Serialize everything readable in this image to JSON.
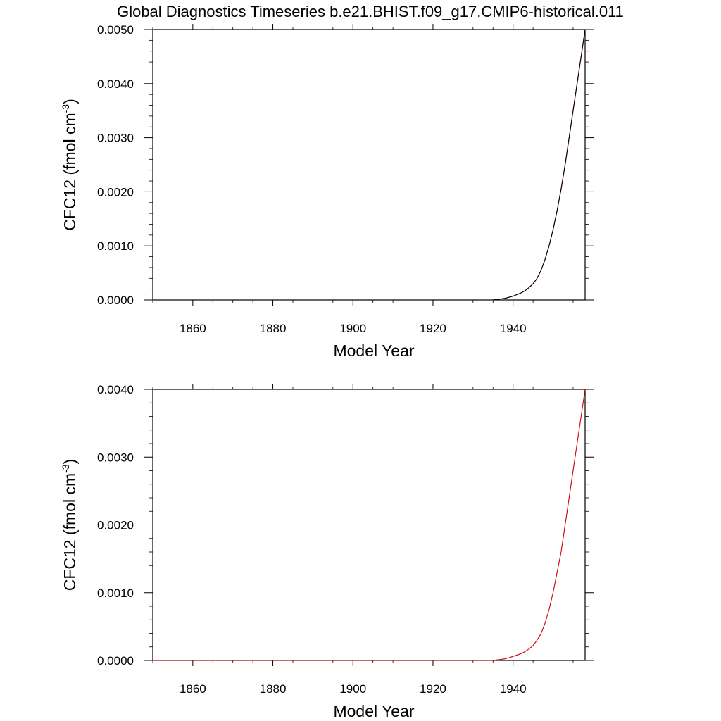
{
  "page": {
    "title": "Global Diagnostics Timeseries b.e21.BHIST.f09_g17.CMIP6-historical.011"
  },
  "chart_data": [
    {
      "type": "line",
      "title": "",
      "xlabel": "Model Year",
      "ylabel_main": "CFC12 (fmol cm",
      "ylabel_sup": "-3",
      "ylabel_close": ")",
      "xlim": [
        1850,
        1958
      ],
      "ylim": [
        0,
        0.005
      ],
      "x_ticks": [
        1860,
        1880,
        1900,
        1920,
        1940
      ],
      "x_tick_labels": [
        "1860",
        "1880",
        "1900",
        "1920",
        "1940"
      ],
      "y_ticks": [
        0,
        0.001,
        0.002,
        0.003,
        0.004,
        0.005
      ],
      "y_tick_labels": [
        "0.0000",
        "0.0010",
        "0.0020",
        "0.0030",
        "0.0040",
        "0.0050"
      ],
      "grid": false,
      "series": [
        {
          "color": "#cc0000",
          "x": [
            1850,
            1900,
            1935,
            1936,
            1937,
            1938,
            1939,
            1940,
            1941,
            1942,
            1943,
            1944,
            1945,
            1946,
            1947,
            1948,
            1949,
            1950,
            1951,
            1952,
            1953,
            1954,
            1955,
            1956,
            1957,
            1958
          ],
          "y": [
            0,
            0,
            0,
            1e-05,
            2e-05,
            3e-05,
            5e-05,
            7e-05,
            0.0001,
            0.00013,
            0.00017,
            0.00023,
            0.0003,
            0.0004,
            0.00055,
            0.00075,
            0.001,
            0.0013,
            0.00165,
            0.00205,
            0.0025,
            0.003,
            0.0035,
            0.004,
            0.0045,
            0.005
          ]
        },
        {
          "color": "#000000",
          "x": [
            1850,
            1900,
            1935,
            1936,
            1937,
            1938,
            1939,
            1940,
            1941,
            1942,
            1943,
            1944,
            1945,
            1946,
            1947,
            1948,
            1949,
            1950,
            1951,
            1952,
            1953,
            1954,
            1955,
            1956,
            1957,
            1958
          ],
          "y": [
            0,
            0,
            0,
            1e-05,
            2e-05,
            3e-05,
            5e-05,
            7e-05,
            0.0001,
            0.00013,
            0.00017,
            0.00023,
            0.0003,
            0.0004,
            0.00055,
            0.00075,
            0.001,
            0.0013,
            0.00165,
            0.00205,
            0.0025,
            0.003,
            0.0035,
            0.004,
            0.0045,
            0.005
          ]
        }
      ]
    },
    {
      "type": "line",
      "title": "",
      "xlabel": "Model Year",
      "ylabel_main": "CFC12 (fmol cm",
      "ylabel_sup": "-3",
      "ylabel_close": ")",
      "xlim": [
        1850,
        1958
      ],
      "ylim": [
        0,
        0.004
      ],
      "x_ticks": [
        1860,
        1880,
        1900,
        1920,
        1940
      ],
      "x_tick_labels": [
        "1860",
        "1880",
        "1900",
        "1920",
        "1940"
      ],
      "y_ticks": [
        0,
        0.001,
        0.002,
        0.003,
        0.004
      ],
      "y_tick_labels": [
        "0.0000",
        "0.0010",
        "0.0020",
        "0.0030",
        "0.0040"
      ],
      "grid": false,
      "series": [
        {
          "color": "#cc0000",
          "x": [
            1850,
            1900,
            1935,
            1936,
            1937,
            1938,
            1939,
            1940,
            1941,
            1942,
            1943,
            1944,
            1945,
            1946,
            1947,
            1948,
            1949,
            1950,
            1951,
            1952,
            1953,
            1954,
            1955,
            1956,
            1957,
            1958
          ],
          "y": [
            0,
            0,
            0,
            8e-06,
            1.5e-05,
            2.5e-05,
            4e-05,
            6e-05,
            8e-05,
            0.0001,
            0.00013,
            0.00017,
            0.00022,
            0.0003,
            0.0004,
            0.00055,
            0.00075,
            0.001,
            0.0013,
            0.0016,
            0.002,
            0.0024,
            0.0028,
            0.0032,
            0.0036,
            0.004
          ]
        }
      ]
    }
  ]
}
